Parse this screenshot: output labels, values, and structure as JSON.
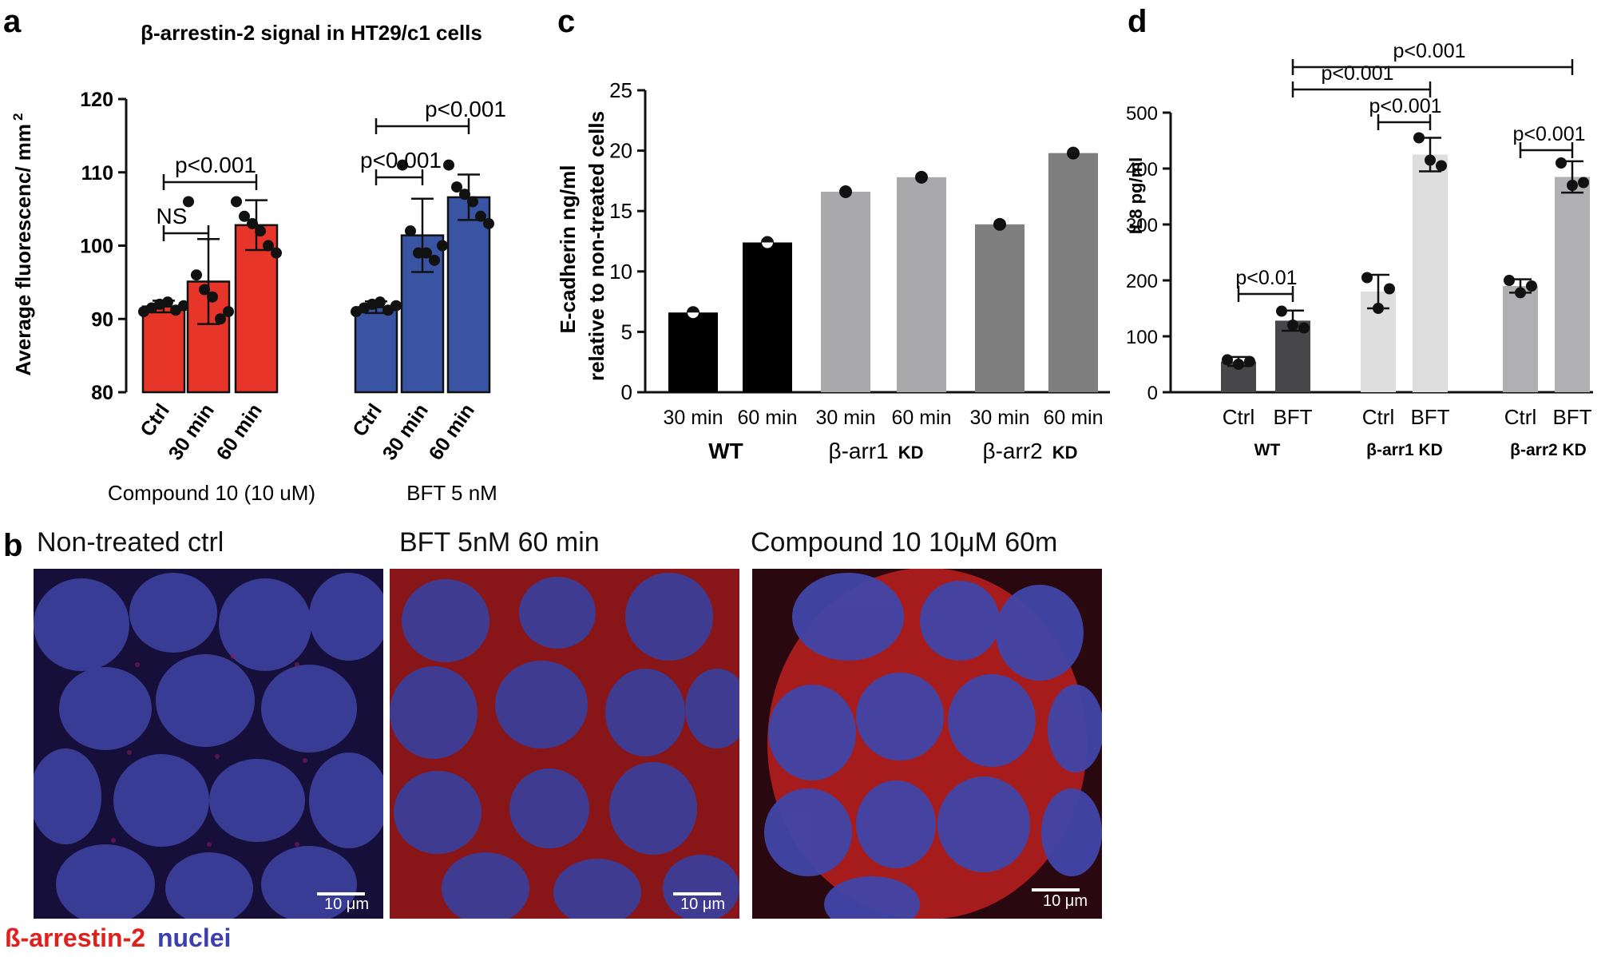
{
  "panels": {
    "a": "a",
    "b": "b",
    "c": "c",
    "d": "d"
  },
  "chart_data": [
    {
      "id": "a",
      "type": "bar",
      "title": "β-arrestin-2 signal in HT29/c1 cells",
      "ylabel": "Average fluorescenc/ mm",
      "ylabel_sup": "2",
      "ylim": [
        80,
        120
      ],
      "yticks": [
        80,
        90,
        100,
        110,
        120
      ],
      "categories": [
        "Ctrl",
        "30 min",
        "60 min",
        "Ctrl",
        "30 min",
        "60 min"
      ],
      "groups": [
        "Compound 10 (10 uM)",
        "BFT 5 nM"
      ],
      "colors": [
        "#e8352a",
        "#e8352a",
        "#e8352a",
        "#3a54a4",
        "#3a54a4",
        "#3a54a4"
      ],
      "values": [
        91.7,
        95.1,
        102.8,
        91.6,
        101.4,
        106.6
      ],
      "errors": [
        0.8,
        5.8,
        3.4,
        0.8,
        5.0,
        3.1
      ],
      "points": [
        [
          91,
          91.5,
          92,
          92.3,
          91.2,
          91.8
        ],
        [
          106,
          96,
          94,
          93,
          90,
          91
        ],
        [
          106,
          104,
          103,
          102,
          100,
          99
        ],
        [
          91,
          91.5,
          92,
          92.3,
          91.2,
          91.8
        ],
        [
          111,
          102,
          99,
          99,
          98,
          100
        ],
        [
          111,
          108,
          107,
          106,
          104,
          103
        ]
      ],
      "annotations": [
        {
          "text": "NS",
          "from": 0,
          "to": 1
        },
        {
          "text": "p<0.001",
          "from": 0,
          "to": 2
        },
        {
          "text": "p<0.001",
          "from": 3,
          "to": 4
        },
        {
          "text": "p<0.001",
          "from": 3,
          "to": 5
        }
      ]
    },
    {
      "id": "c",
      "type": "bar",
      "ylabel_lines": [
        "E-cadherin ng/ml",
        "relative to non-treated cells"
      ],
      "ylim": [
        0,
        25
      ],
      "yticks": [
        0,
        5,
        10,
        15,
        20,
        25
      ],
      "categories": [
        "30 min",
        "60 min",
        "30 min",
        "60 min",
        "30 min",
        "60 min"
      ],
      "groups": [
        {
          "label": "WT",
          "suffix": ""
        },
        {
          "label": "β-arr1",
          "suffix": "KD"
        },
        {
          "label": "β-arr2",
          "suffix": "KD"
        }
      ],
      "colors": [
        "#000000",
        "#000000",
        "#a9a9ab",
        "#a9a9ab",
        "#7f7f80",
        "#7f7f80"
      ],
      "values": [
        6.6,
        12.4,
        16.6,
        17.8,
        13.9,
        19.8
      ]
    },
    {
      "id": "d",
      "type": "bar",
      "ylabel": "IL8 pg/ml",
      "ylim": [
        0,
        500
      ],
      "yticks": [
        0,
        100,
        200,
        300,
        400,
        500
      ],
      "categories": [
        "Ctrl",
        "BFT",
        "Ctrl",
        "BFT",
        "Ctrl",
        "BFT"
      ],
      "groups": [
        "WT",
        "β-arr1 KD",
        "β-arr2 KD"
      ],
      "colors": [
        "#474749",
        "#474749",
        "#dededf",
        "#dededf",
        "#b0b0b2",
        "#b0b0b2"
      ],
      "values": [
        55,
        128,
        180,
        425,
        190,
        385
      ],
      "errors": [
        8,
        18,
        30,
        30,
        12,
        28
      ],
      "points": [
        [
          58,
          50,
          55
        ],
        [
          145,
          120,
          115
        ],
        [
          205,
          150,
          185
        ],
        [
          455,
          415,
          405
        ],
        [
          200,
          178,
          190
        ],
        [
          410,
          370,
          375
        ]
      ],
      "annotations": [
        {
          "text": "p<0.01",
          "from": 0,
          "to": 1
        },
        {
          "text": "p<0.001",
          "from": 2,
          "to": 3
        },
        {
          "text": "p<0.001",
          "from": 4,
          "to": 5
        },
        {
          "text": "p<0.001",
          "from": 1,
          "to": 3
        },
        {
          "text": "p<0.001",
          "from": 1,
          "to": 5
        }
      ]
    }
  ],
  "micrographs": [
    {
      "title": "Non-treated ctrl",
      "scale": "10 μm"
    },
    {
      "title": "BFT 5nM  60 min",
      "scale": "10 μm"
    },
    {
      "title": "Compound 10 10μM 60m",
      "scale": "10 μm"
    }
  ],
  "legend": {
    "red_label": "ß-arrestin-2",
    "blue_label": "nuclei",
    "red_color": "#e0201c",
    "blue_color": "#3b3fb0"
  }
}
